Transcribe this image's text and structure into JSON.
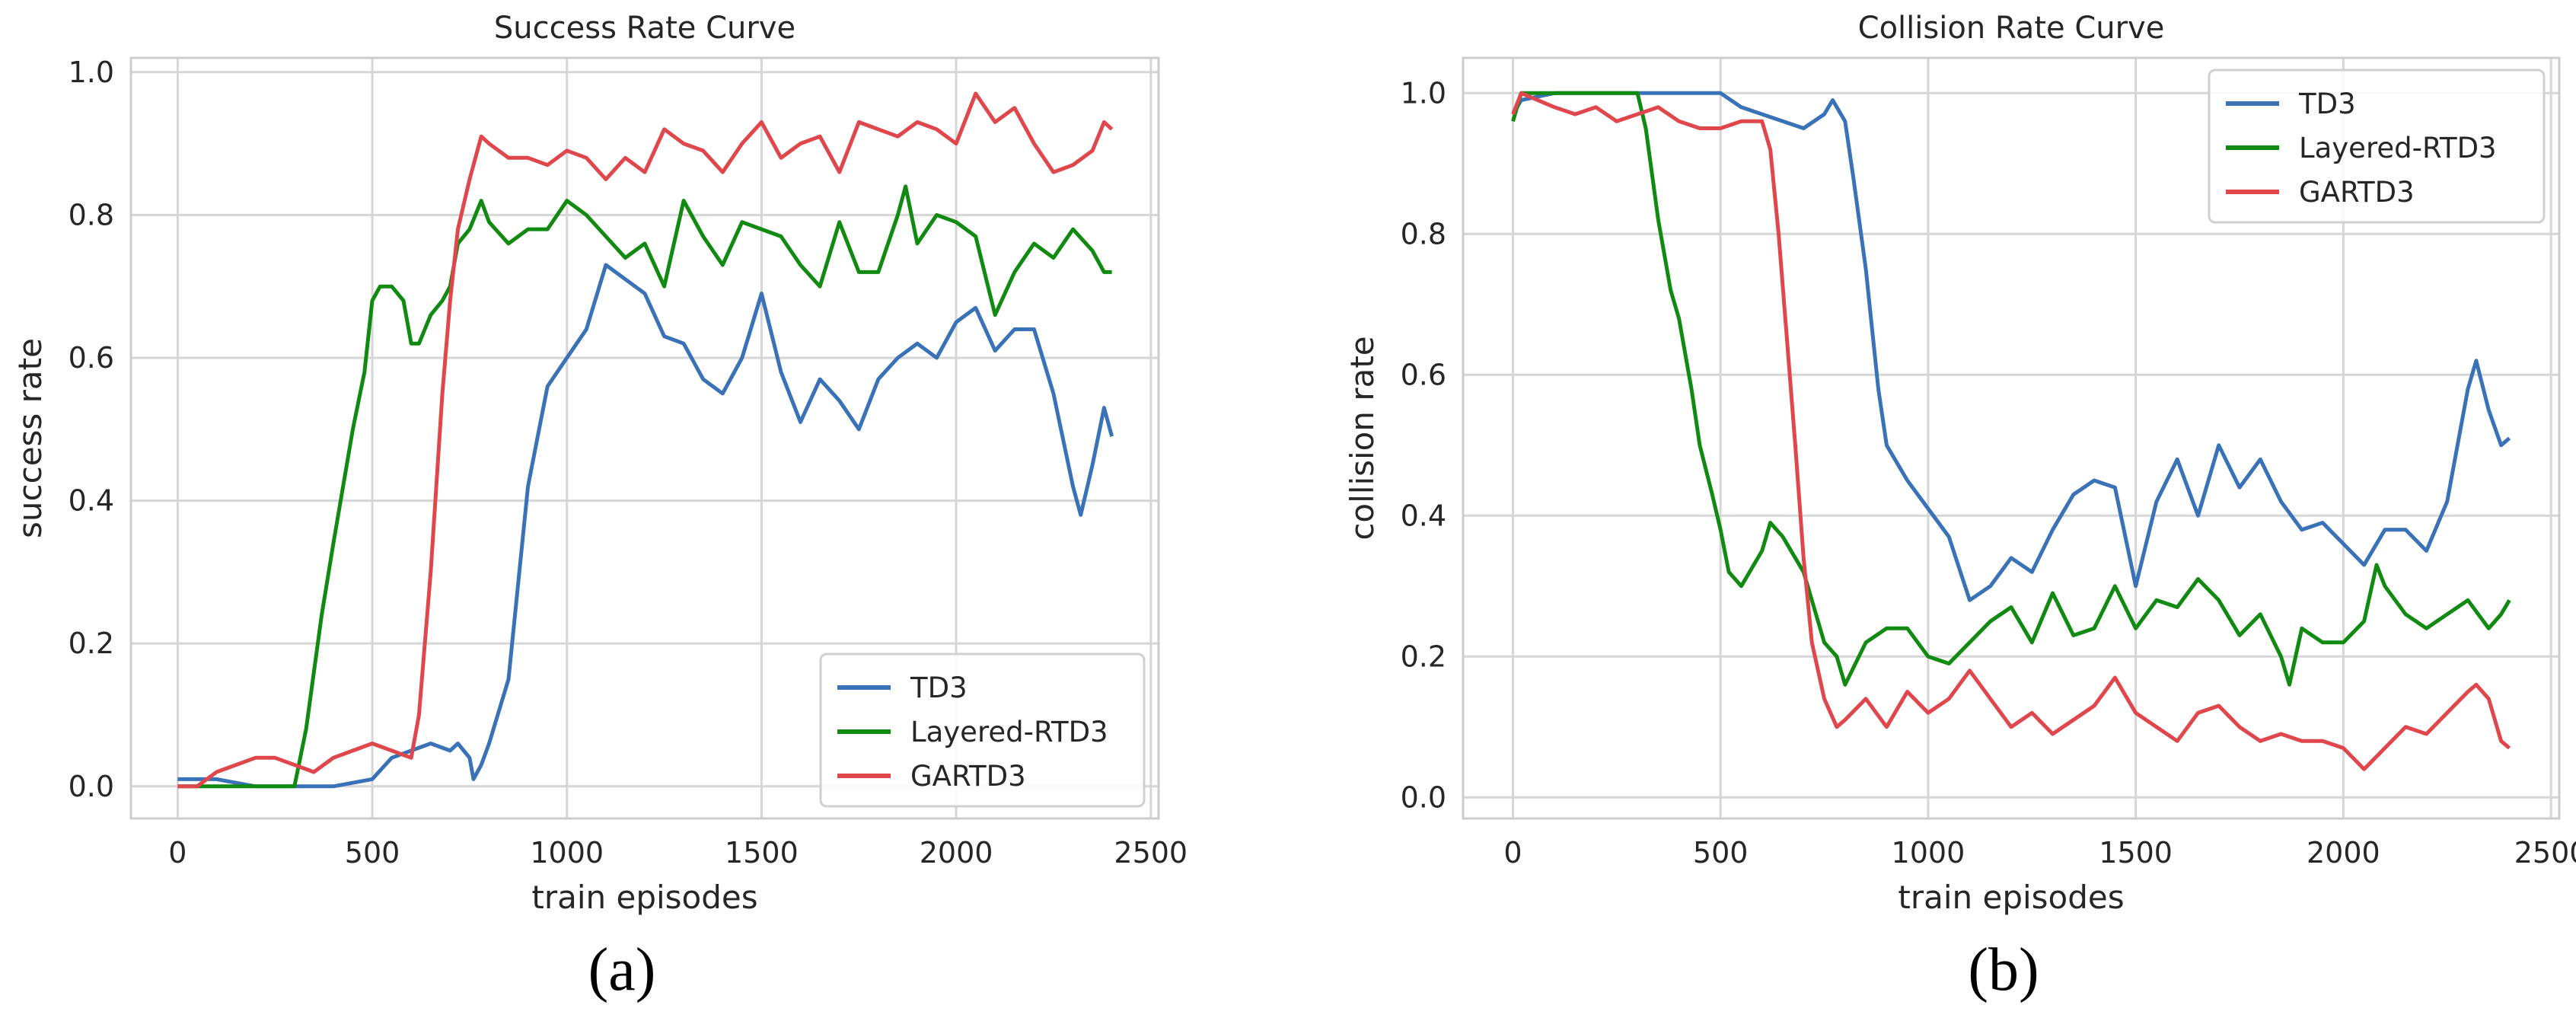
{
  "chart_data": [
    {
      "type": "line",
      "title": "Success Rate Curve",
      "xlabel": "train episodes",
      "ylabel": "success rate",
      "xlim": [
        -120,
        2520
      ],
      "ylim": [
        -0.045,
        1.02
      ],
      "xticks": [
        0,
        500,
        1000,
        1500,
        2000,
        2500
      ],
      "yticks": [
        0.0,
        0.2,
        0.4,
        0.6,
        0.8,
        1.0
      ],
      "xtick_labels": [
        "0",
        "500",
        "1000",
        "1500",
        "2000",
        "2500"
      ],
      "ytick_labels": [
        "0.0",
        "0.2",
        "0.4",
        "0.6",
        "0.8",
        "1.0"
      ],
      "grid": true,
      "legend_position": "lower-right",
      "panel_label": "(a)",
      "series": [
        {
          "name": "TD3",
          "color": "#3a72b8",
          "x": [
            0,
            100,
            200,
            300,
            400,
            500,
            550,
            600,
            650,
            700,
            720,
            750,
            760,
            780,
            800,
            850,
            900,
            950,
            1000,
            1050,
            1100,
            1150,
            1200,
            1250,
            1300,
            1350,
            1400,
            1450,
            1500,
            1550,
            1600,
            1650,
            1700,
            1750,
            1800,
            1850,
            1900,
            1950,
            2000,
            2050,
            2100,
            2150,
            2200,
            2250,
            2300,
            2320,
            2350,
            2380,
            2400
          ],
          "y": [
            0.01,
            0.01,
            0.0,
            0.0,
            0.0,
            0.01,
            0.04,
            0.05,
            0.06,
            0.05,
            0.06,
            0.04,
            0.01,
            0.03,
            0.06,
            0.15,
            0.42,
            0.56,
            0.6,
            0.64,
            0.73,
            0.71,
            0.69,
            0.63,
            0.62,
            0.57,
            0.55,
            0.6,
            0.69,
            0.58,
            0.51,
            0.57,
            0.54,
            0.5,
            0.57,
            0.6,
            0.62,
            0.6,
            0.65,
            0.67,
            0.61,
            0.64,
            0.64,
            0.55,
            0.42,
            0.38,
            0.45,
            0.53,
            0.49
          ]
        },
        {
          "name": "Layered-RTD3",
          "color": "#118a11",
          "x": [
            0,
            100,
            200,
            300,
            330,
            370,
            400,
            450,
            480,
            500,
            520,
            550,
            580,
            600,
            620,
            650,
            680,
            700,
            720,
            750,
            780,
            800,
            850,
            900,
            950,
            1000,
            1050,
            1100,
            1150,
            1200,
            1250,
            1300,
            1350,
            1400,
            1450,
            1500,
            1550,
            1600,
            1650,
            1700,
            1750,
            1800,
            1850,
            1870,
            1900,
            1950,
            2000,
            2050,
            2100,
            2150,
            2200,
            2250,
            2300,
            2350,
            2380,
            2400
          ],
          "y": [
            0.0,
            0.0,
            0.0,
            0.0,
            0.08,
            0.24,
            0.34,
            0.5,
            0.58,
            0.68,
            0.7,
            0.7,
            0.68,
            0.62,
            0.62,
            0.66,
            0.68,
            0.7,
            0.76,
            0.78,
            0.82,
            0.79,
            0.76,
            0.78,
            0.78,
            0.82,
            0.8,
            0.77,
            0.74,
            0.76,
            0.7,
            0.82,
            0.77,
            0.73,
            0.79,
            0.78,
            0.77,
            0.73,
            0.7,
            0.79,
            0.72,
            0.72,
            0.8,
            0.84,
            0.76,
            0.8,
            0.79,
            0.77,
            0.66,
            0.72,
            0.76,
            0.74,
            0.78,
            0.75,
            0.72,
            0.72
          ]
        },
        {
          "name": "GARTD3",
          "color": "#e0474c",
          "x": [
            0,
            50,
            100,
            150,
            200,
            250,
            300,
            350,
            400,
            450,
            500,
            550,
            600,
            620,
            650,
            680,
            700,
            720,
            750,
            780,
            800,
            850,
            900,
            950,
            1000,
            1050,
            1100,
            1150,
            1200,
            1250,
            1300,
            1350,
            1400,
            1450,
            1500,
            1550,
            1600,
            1650,
            1700,
            1750,
            1800,
            1850,
            1900,
            1950,
            2000,
            2050,
            2100,
            2150,
            2200,
            2250,
            2300,
            2350,
            2380,
            2400
          ],
          "y": [
            0.0,
            0.0,
            0.02,
            0.03,
            0.04,
            0.04,
            0.03,
            0.02,
            0.04,
            0.05,
            0.06,
            0.05,
            0.04,
            0.1,
            0.3,
            0.55,
            0.68,
            0.78,
            0.85,
            0.91,
            0.9,
            0.88,
            0.88,
            0.87,
            0.89,
            0.88,
            0.85,
            0.88,
            0.86,
            0.92,
            0.9,
            0.89,
            0.86,
            0.9,
            0.93,
            0.88,
            0.9,
            0.91,
            0.86,
            0.93,
            0.92,
            0.91,
            0.93,
            0.92,
            0.9,
            0.97,
            0.93,
            0.95,
            0.9,
            0.86,
            0.87,
            0.89,
            0.93,
            0.92
          ]
        }
      ]
    },
    {
      "type": "line",
      "title": "Collision Rate Curve",
      "xlabel": "train episodes",
      "ylabel": "collision rate",
      "xlim": [
        -120,
        2520
      ],
      "ylim": [
        -0.03,
        1.05
      ],
      "xticks": [
        0,
        500,
        1000,
        1500,
        2000,
        2500
      ],
      "yticks": [
        0.0,
        0.2,
        0.4,
        0.6,
        0.8,
        1.0
      ],
      "xtick_labels": [
        "0",
        "500",
        "1000",
        "1500",
        "2000",
        "2500"
      ],
      "ytick_labels": [
        "0.0",
        "0.2",
        "0.4",
        "0.6",
        "0.8",
        "1.0"
      ],
      "grid": true,
      "legend_position": "upper-right",
      "panel_label": "(b)",
      "series": [
        {
          "name": "TD3",
          "color": "#3a72b8",
          "x": [
            0,
            20,
            100,
            200,
            300,
            400,
            500,
            550,
            600,
            650,
            700,
            750,
            770,
            800,
            820,
            850,
            880,
            900,
            950,
            1000,
            1050,
            1100,
            1150,
            1200,
            1250,
            1300,
            1350,
            1400,
            1450,
            1500,
            1550,
            1600,
            1650,
            1700,
            1750,
            1800,
            1850,
            1900,
            1950,
            2000,
            2050,
            2100,
            2150,
            2200,
            2250,
            2300,
            2320,
            2350,
            2380,
            2400
          ],
          "y": [
            0.97,
            0.99,
            1.0,
            1.0,
            1.0,
            1.0,
            1.0,
            0.98,
            0.97,
            0.96,
            0.95,
            0.97,
            0.99,
            0.96,
            0.88,
            0.75,
            0.58,
            0.5,
            0.45,
            0.41,
            0.37,
            0.28,
            0.3,
            0.34,
            0.32,
            0.38,
            0.43,
            0.45,
            0.44,
            0.3,
            0.42,
            0.48,
            0.4,
            0.5,
            0.44,
            0.48,
            0.42,
            0.38,
            0.39,
            0.36,
            0.33,
            0.38,
            0.38,
            0.35,
            0.42,
            0.58,
            0.62,
            0.55,
            0.5,
            0.51
          ]
        },
        {
          "name": "Layered-RTD3",
          "color": "#118a11",
          "x": [
            0,
            20,
            100,
            200,
            300,
            320,
            350,
            380,
            400,
            430,
            450,
            480,
            500,
            520,
            550,
            580,
            600,
            620,
            650,
            680,
            700,
            730,
            750,
            780,
            800,
            850,
            900,
            950,
            1000,
            1050,
            1100,
            1150,
            1200,
            1250,
            1300,
            1350,
            1400,
            1450,
            1500,
            1550,
            1600,
            1650,
            1700,
            1750,
            1800,
            1850,
            1870,
            1900,
            1950,
            2000,
            2050,
            2080,
            2100,
            2150,
            2200,
            2250,
            2300,
            2350,
            2380,
            2400
          ],
          "y": [
            0.96,
            1.0,
            1.0,
            1.0,
            1.0,
            0.95,
            0.82,
            0.72,
            0.68,
            0.58,
            0.5,
            0.43,
            0.38,
            0.32,
            0.3,
            0.33,
            0.35,
            0.39,
            0.37,
            0.34,
            0.32,
            0.26,
            0.22,
            0.2,
            0.16,
            0.22,
            0.24,
            0.24,
            0.2,
            0.19,
            0.22,
            0.25,
            0.27,
            0.22,
            0.29,
            0.23,
            0.24,
            0.3,
            0.24,
            0.28,
            0.27,
            0.31,
            0.28,
            0.23,
            0.26,
            0.2,
            0.16,
            0.24,
            0.22,
            0.22,
            0.25,
            0.33,
            0.3,
            0.26,
            0.24,
            0.26,
            0.28,
            0.24,
            0.26,
            0.28
          ]
        },
        {
          "name": "GARTD3",
          "color": "#e0474c",
          "x": [
            0,
            20,
            100,
            150,
            200,
            250,
            300,
            350,
            400,
            450,
            500,
            550,
            600,
            620,
            640,
            660,
            680,
            700,
            720,
            750,
            780,
            800,
            850,
            900,
            950,
            1000,
            1050,
            1100,
            1150,
            1200,
            1250,
            1300,
            1350,
            1400,
            1450,
            1500,
            1550,
            1600,
            1650,
            1700,
            1750,
            1800,
            1850,
            1900,
            1950,
            2000,
            2050,
            2100,
            2150,
            2200,
            2250,
            2300,
            2320,
            2350,
            2380,
            2400
          ],
          "y": [
            0.97,
            1.0,
            0.98,
            0.97,
            0.98,
            0.96,
            0.97,
            0.98,
            0.96,
            0.95,
            0.95,
            0.96,
            0.96,
            0.92,
            0.8,
            0.65,
            0.5,
            0.34,
            0.22,
            0.14,
            0.1,
            0.11,
            0.14,
            0.1,
            0.15,
            0.12,
            0.14,
            0.18,
            0.14,
            0.1,
            0.12,
            0.09,
            0.11,
            0.13,
            0.17,
            0.12,
            0.1,
            0.08,
            0.12,
            0.13,
            0.1,
            0.08,
            0.09,
            0.08,
            0.08,
            0.07,
            0.04,
            0.07,
            0.1,
            0.09,
            0.12,
            0.15,
            0.16,
            0.14,
            0.08,
            0.07
          ]
        }
      ]
    }
  ]
}
